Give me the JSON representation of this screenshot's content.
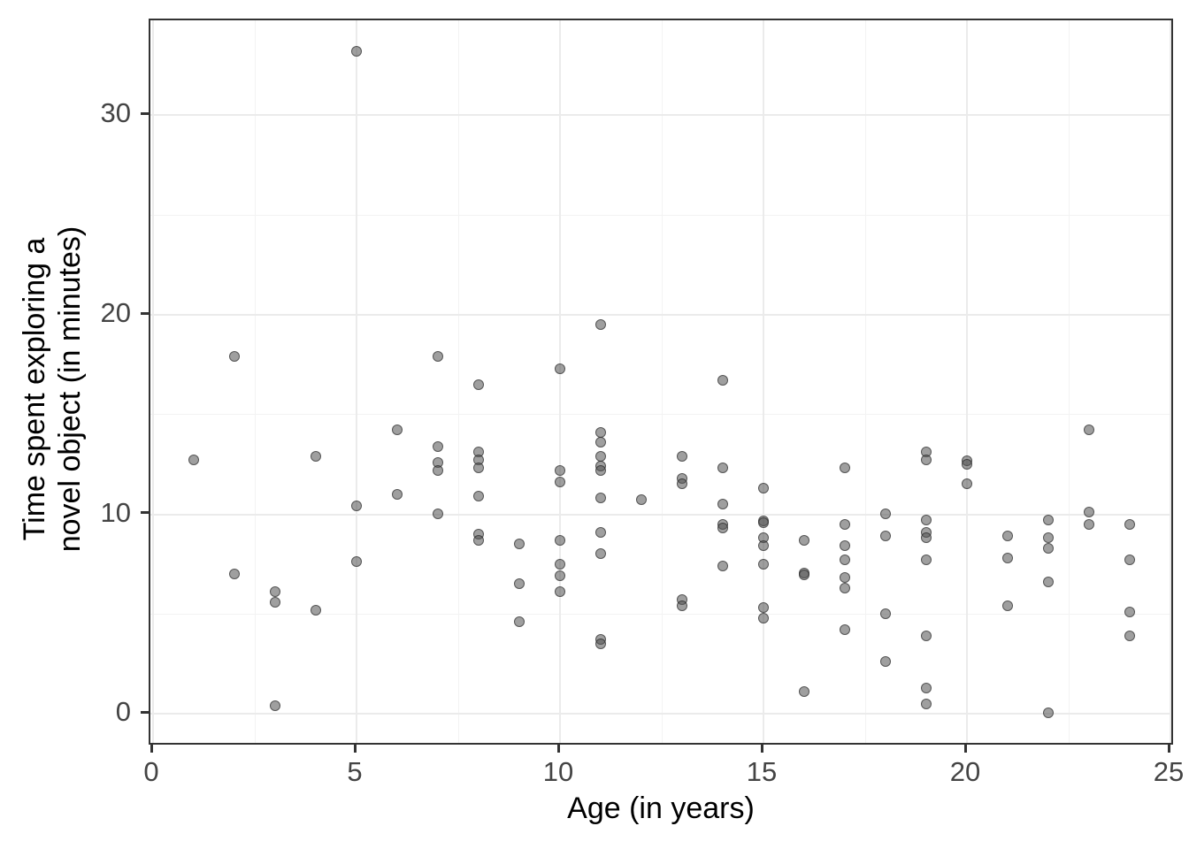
{
  "chart_data": {
    "type": "scatter",
    "title": "",
    "xlabel": "Age (in years)",
    "ylabel_lines": [
      "Time spent exploring a",
      "novel object (in minutes)"
    ],
    "xlim": [
      0,
      25
    ],
    "ylim": [
      0,
      33.2
    ],
    "x_ticks": [
      0,
      5,
      10,
      15,
      20,
      25
    ],
    "y_ticks": [
      0,
      10,
      20,
      30
    ],
    "x_minor_ticks": [
      2.5,
      7.5,
      12.5,
      17.5,
      22.5
    ],
    "y_minor_ticks": [
      5,
      15,
      25
    ],
    "grid": true,
    "legend": "none",
    "point_color": "#4d4d4d",
    "gridline_color": "#ebebeb",
    "panel_border_color": "#333333",
    "points": [
      [
        1,
        12.7
      ],
      [
        2,
        17.9
      ],
      [
        2,
        7.0
      ],
      [
        3,
        6.1
      ],
      [
        3,
        5.6
      ],
      [
        3,
        0.4
      ],
      [
        4,
        12.9
      ],
      [
        4,
        5.2
      ],
      [
        5,
        33.2
      ],
      [
        5,
        10.4
      ],
      [
        5,
        7.6
      ],
      [
        6,
        14.2
      ],
      [
        6,
        11.0
      ],
      [
        7,
        17.9
      ],
      [
        7,
        13.4
      ],
      [
        7,
        12.6
      ],
      [
        7,
        12.2
      ],
      [
        7,
        10.0
      ],
      [
        8,
        16.5
      ],
      [
        8,
        13.1
      ],
      [
        8,
        12.7
      ],
      [
        8,
        12.3
      ],
      [
        8,
        10.9
      ],
      [
        8,
        9.0
      ],
      [
        8,
        8.7
      ],
      [
        9,
        8.5
      ],
      [
        9,
        6.5
      ],
      [
        9,
        4.6
      ],
      [
        10,
        17.3
      ],
      [
        10,
        12.2
      ],
      [
        10,
        11.6
      ],
      [
        10,
        8.7
      ],
      [
        10,
        7.5
      ],
      [
        10,
        6.9
      ],
      [
        10,
        6.1
      ],
      [
        11,
        19.5
      ],
      [
        11,
        14.1
      ],
      [
        11,
        13.6
      ],
      [
        11,
        12.9
      ],
      [
        11,
        12.4
      ],
      [
        11,
        12.2
      ],
      [
        11,
        10.8
      ],
      [
        11,
        9.1
      ],
      [
        11,
        8.0
      ],
      [
        11,
        3.7
      ],
      [
        11,
        3.5
      ],
      [
        12,
        10.7
      ],
      [
        13,
        12.9
      ],
      [
        13,
        11.8
      ],
      [
        13,
        11.5
      ],
      [
        13,
        5.7
      ],
      [
        13,
        5.4
      ],
      [
        14,
        16.7
      ],
      [
        14,
        12.3
      ],
      [
        14,
        10.5
      ],
      [
        14,
        9.5
      ],
      [
        14,
        9.3
      ],
      [
        14,
        7.4
      ],
      [
        15,
        11.3
      ],
      [
        15,
        9.65
      ],
      [
        15,
        9.55
      ],
      [
        15,
        8.8
      ],
      [
        15,
        8.4
      ],
      [
        15,
        7.5
      ],
      [
        15,
        5.3
      ],
      [
        15,
        4.8
      ],
      [
        16,
        8.7
      ],
      [
        16,
        7.05
      ],
      [
        16,
        6.95
      ],
      [
        16,
        1.1
      ],
      [
        17,
        12.3
      ],
      [
        17,
        9.5
      ],
      [
        17,
        8.4
      ],
      [
        17,
        7.7
      ],
      [
        17,
        6.8
      ],
      [
        17,
        6.3
      ],
      [
        17,
        4.2
      ],
      [
        18,
        10.0
      ],
      [
        18,
        8.9
      ],
      [
        18,
        5.0
      ],
      [
        18,
        2.6
      ],
      [
        19,
        13.1
      ],
      [
        19,
        12.7
      ],
      [
        19,
        9.7
      ],
      [
        19,
        9.1
      ],
      [
        19,
        8.8
      ],
      [
        19,
        7.7
      ],
      [
        19,
        3.9
      ],
      [
        19,
        1.3
      ],
      [
        19,
        0.5
      ],
      [
        20,
        12.65
      ],
      [
        20,
        12.5
      ],
      [
        20,
        11.5
      ],
      [
        21,
        8.9
      ],
      [
        21,
        7.8
      ],
      [
        21,
        5.4
      ],
      [
        22,
        9.7
      ],
      [
        22,
        8.8
      ],
      [
        22,
        8.3
      ],
      [
        22,
        6.6
      ],
      [
        22,
        0.05
      ],
      [
        23,
        14.2
      ],
      [
        23,
        10.1
      ],
      [
        23,
        9.5
      ],
      [
        24,
        9.5
      ],
      [
        24,
        7.7
      ],
      [
        24,
        5.1
      ],
      [
        24,
        3.9
      ]
    ]
  }
}
